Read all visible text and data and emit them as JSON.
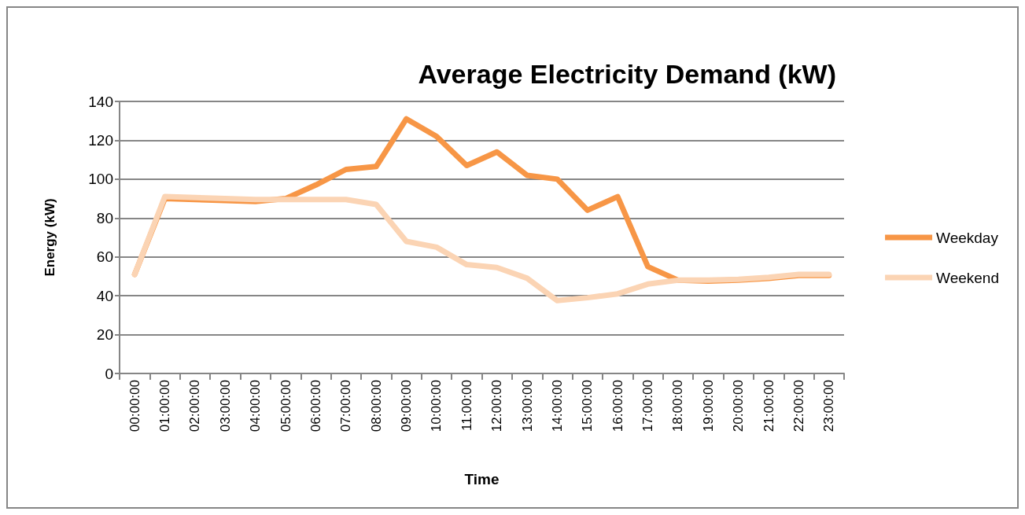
{
  "chart_data": {
    "type": "line",
    "title": "Average Electricity Demand (kW)",
    "xlabel": "Time",
    "ylabel": "Energy (kW)",
    "categories": [
      "00:00:00",
      "01:00:00",
      "02:00:00",
      "03:00:00",
      "04:00:00",
      "05:00:00",
      "06:00:00",
      "07:00:00",
      "08:00:00",
      "09:00:00",
      "10:00:00",
      "11:00:00",
      "12:00:00",
      "13:00:00",
      "14:00:00",
      "15:00:00",
      "16:00:00",
      "17:00:00",
      "18:00:00",
      "19:00:00",
      "20:00:00",
      "21:00:00",
      "22:00:00",
      "23:00:00"
    ],
    "series": [
      {
        "name": "Weekday",
        "color": "#f79646",
        "values": [
          51,
          90,
          89.5,
          89,
          88.5,
          90,
          97,
          105,
          106.5,
          131,
          122,
          107,
          114,
          102,
          100,
          84,
          91,
          55,
          48,
          47.5,
          48,
          49,
          50.5,
          50.5
        ]
      },
      {
        "name": "Weekend",
        "color": "#fbd4b4",
        "values": [
          51,
          91,
          90.5,
          90,
          89.5,
          89.5,
          89.5,
          89.5,
          87,
          68,
          65,
          56,
          54.5,
          49,
          37.5,
          39,
          41,
          46,
          48,
          48,
          48.5,
          49.5,
          51,
          51
        ]
      }
    ],
    "ylim": [
      0,
      140
    ],
    "yticks": [
      0,
      20,
      40,
      60,
      80,
      100,
      120,
      140
    ],
    "grid": "y",
    "legend": "right",
    "marker": "none",
    "line_style": "solid"
  }
}
